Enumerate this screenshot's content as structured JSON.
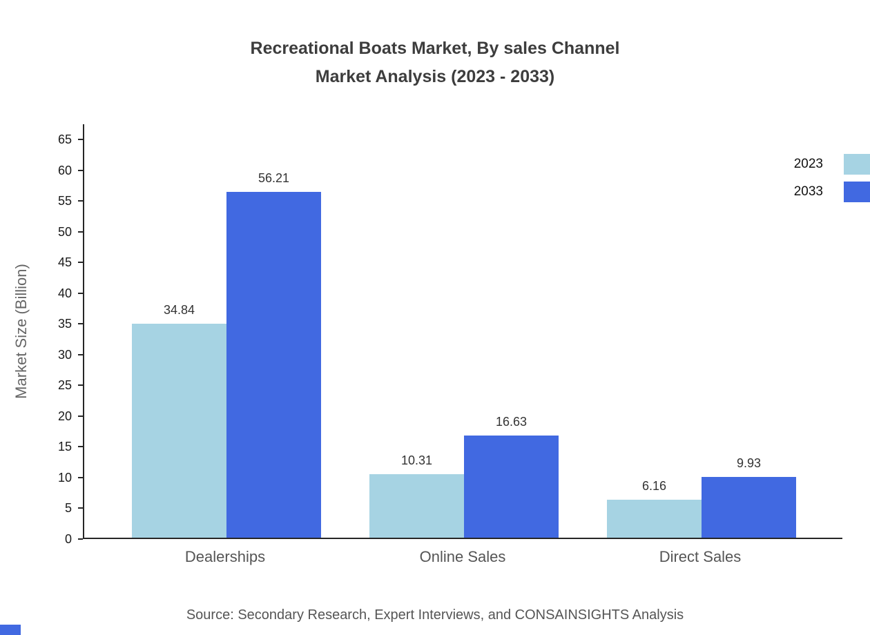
{
  "title": {
    "line1": "Recreational Boats Market, By sales Channel",
    "line2": "Market Analysis (2023 - 2033)"
  },
  "source": "Source: Secondary Research, Expert Interviews, and CONSAINSIGHTS Analysis",
  "chart_data": {
    "type": "bar",
    "title": "Recreational Boats Market, By sales Channel Market Analysis (2023 - 2033)",
    "categories": [
      "Dealerships",
      "Online Sales",
      "Direct Sales"
    ],
    "series": [
      {
        "name": "2023",
        "color": "#a6d3e3",
        "values": [
          34.84,
          10.31,
          6.16
        ]
      },
      {
        "name": "2033",
        "color": "#4169e1",
        "values": [
          56.21,
          16.63,
          9.93
        ]
      }
    ],
    "xlabel": "",
    "ylabel": "Market Size (Billion)",
    "ylim": [
      0,
      65
    ],
    "ytick_step": 5,
    "grid": false,
    "legend_position": "top-right",
    "value_labels": true
  },
  "colors": {
    "axis": "#262626",
    "title_text": "#3d3d3d",
    "tick_text": "#1a1a1a",
    "category_text": "#555555",
    "source_text": "#555555",
    "series_2023": "#a6d3e3",
    "series_2033": "#4169e1"
  }
}
